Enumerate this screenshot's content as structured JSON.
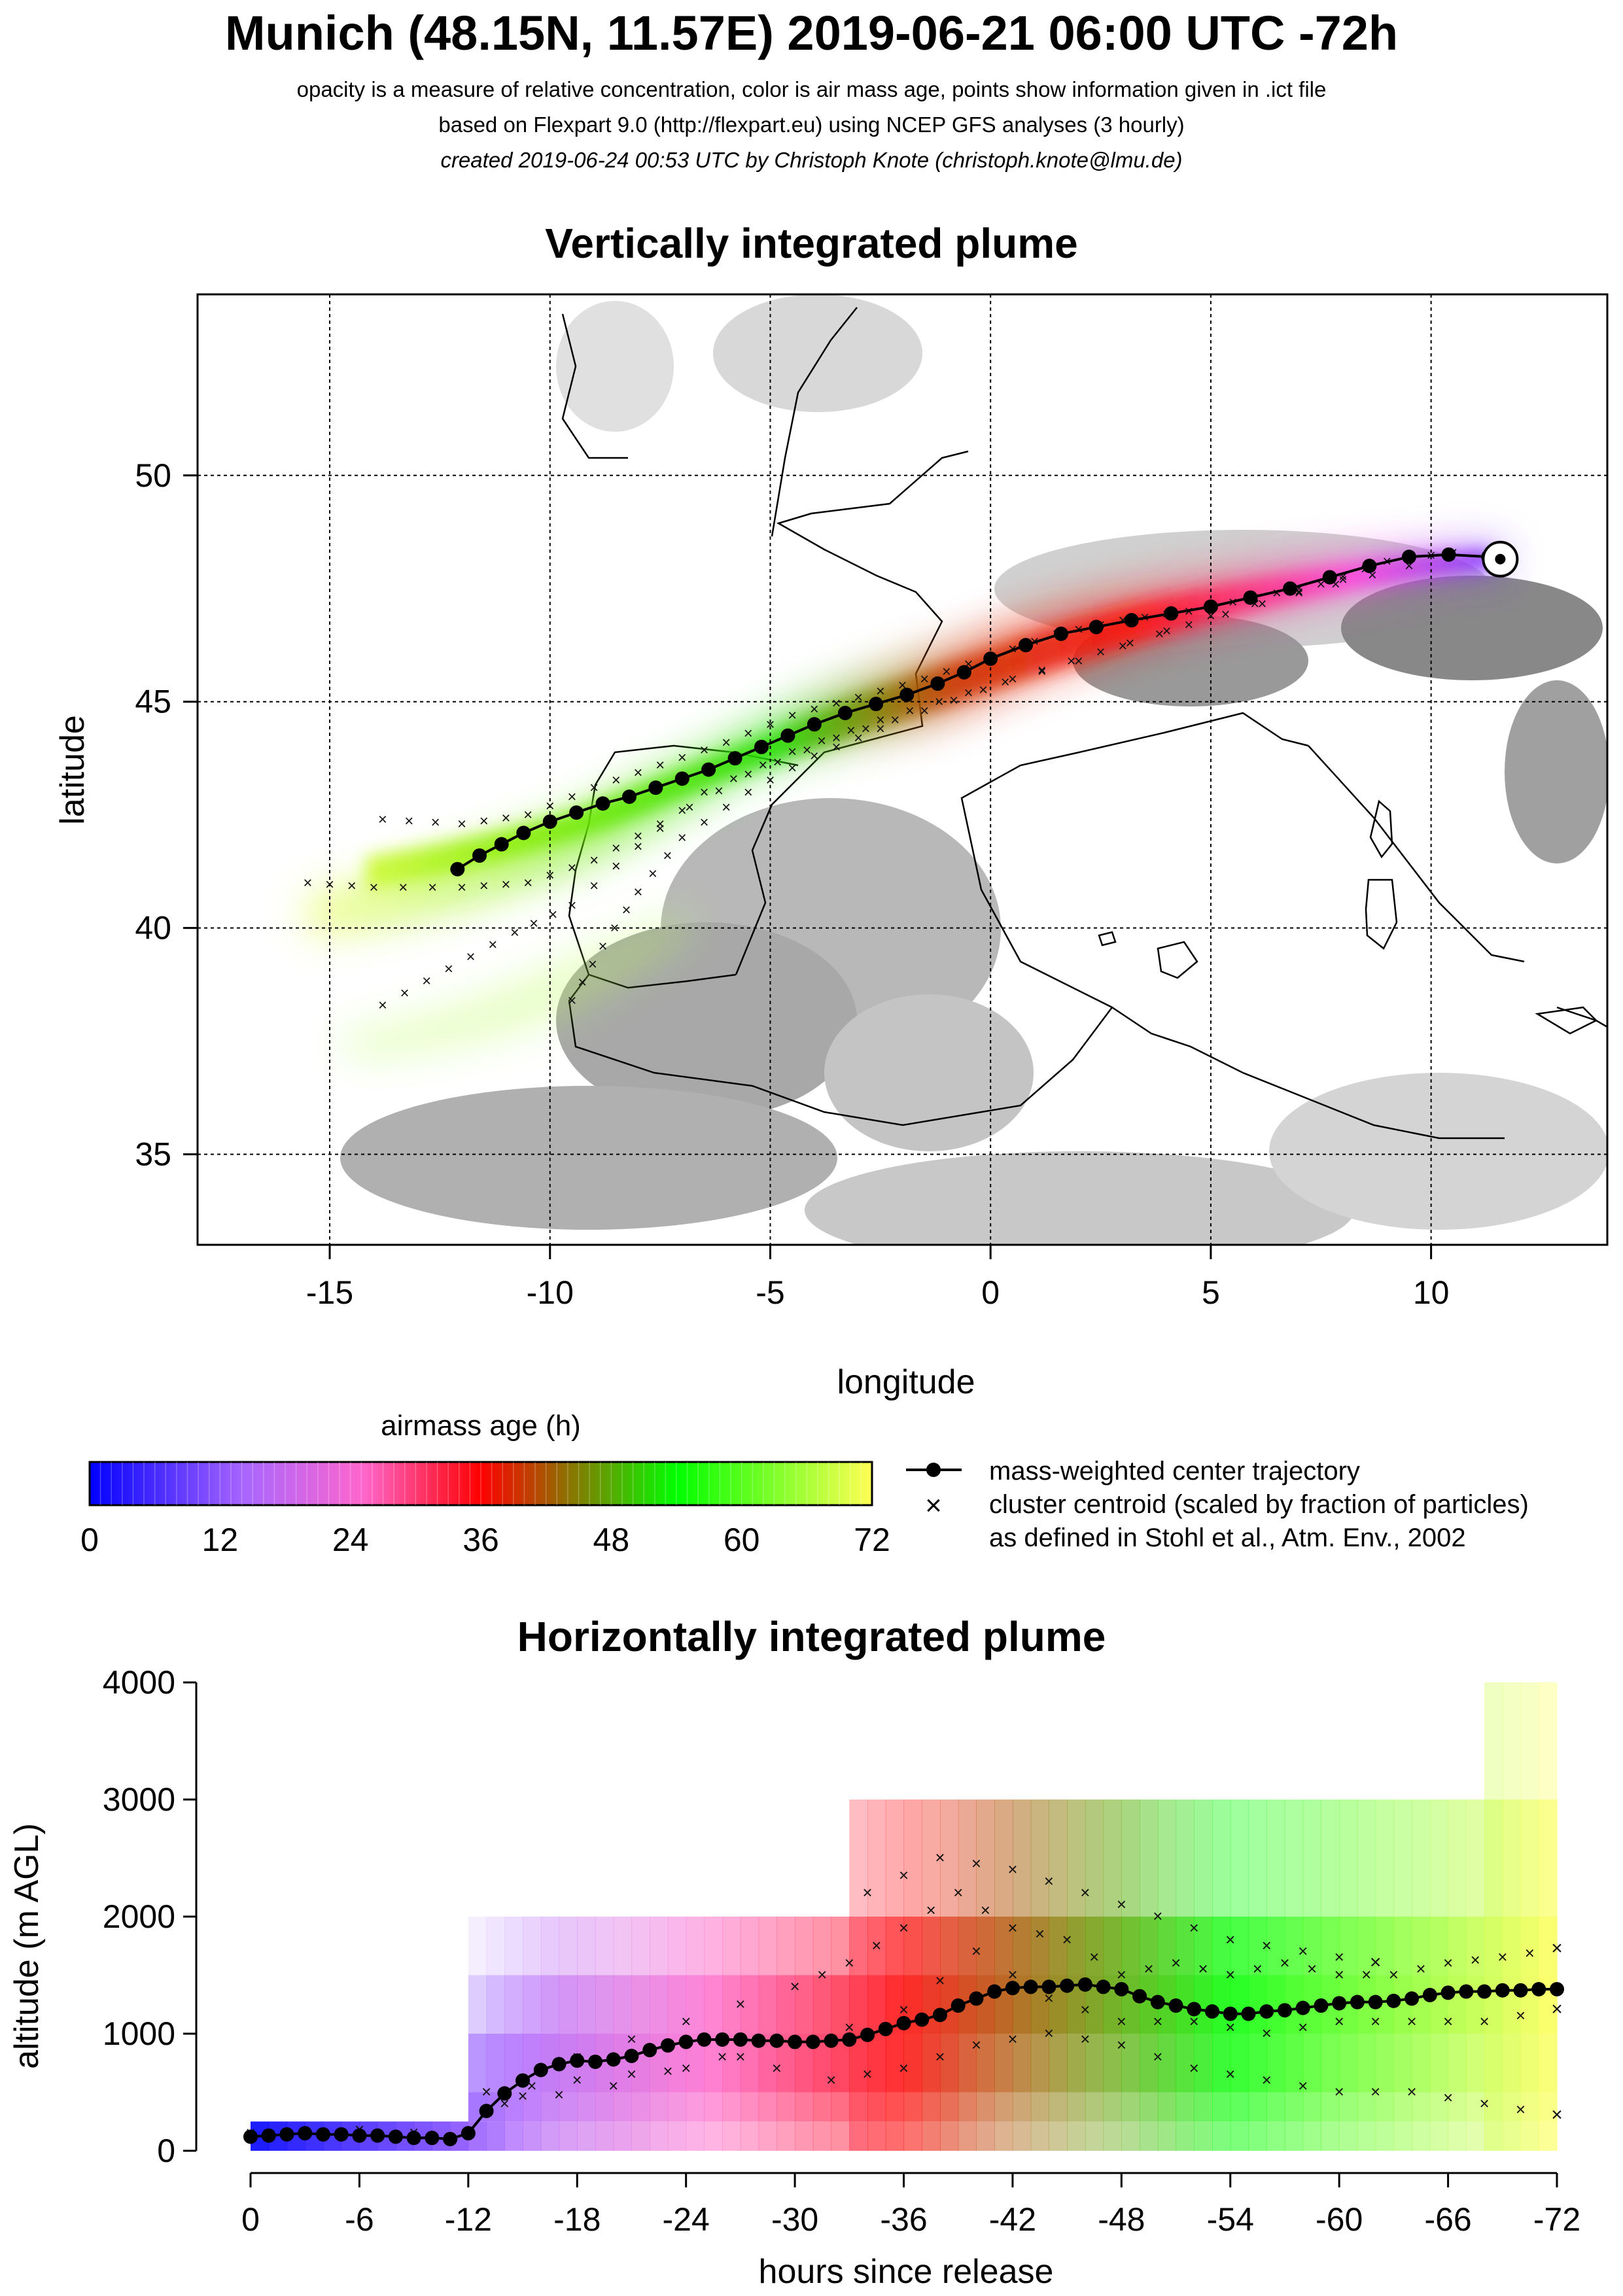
{
  "header": {
    "title": "Munich (48.15N, 11.57E) 2019-06-21 06:00 UTC -72h",
    "subtitle1": "opacity is a measure of relative concentration, color is air mass age, points show information given in .ict file",
    "subtitle2": "based on Flexpart 9.0 (http://flexpart.eu) using NCEP GFS analyses (3 hourly)",
    "subtitle3": "created 2019-06-24 00:53 UTC by Christoph Knote (christoph.knote@lmu.de)"
  },
  "colorbar": {
    "title": "airmass age (h)",
    "ticks": [
      "0",
      "12",
      "24",
      "36",
      "48",
      "60",
      "72"
    ],
    "stops": [
      "#0000ff",
      "#aa66ff",
      "#ff66cc",
      "#ff0000",
      "#00ff00",
      "#ffff55"
    ]
  },
  "legend": {
    "line1": "mass-weighted center trajectory",
    "line2": "cluster centroid (scaled by fraction of particles)",
    "line3": "as defined in Stohl et al., Atm. Env., 2002"
  },
  "chart_data": [
    {
      "type": "scatter",
      "title": "Vertically integrated plume",
      "xlabel": "longitude",
      "ylabel": "latitude",
      "xlim": [
        -18,
        14
      ],
      "ylim": [
        33,
        54
      ],
      "xticks": [
        "-15",
        "-10",
        "-5",
        "0",
        "5",
        "10"
      ],
      "yticks": [
        "35",
        "40",
        "45",
        "50"
      ],
      "grid": true,
      "release_point": {
        "lon": 11.57,
        "lat": 48.15
      },
      "center_trajectory": [
        [
          11.3,
          48.2
        ],
        [
          10.4,
          48.25
        ],
        [
          9.5,
          48.2
        ],
        [
          8.6,
          48.0
        ],
        [
          7.7,
          47.75
        ],
        [
          6.8,
          47.5
        ],
        [
          5.9,
          47.3
        ],
        [
          5.0,
          47.1
        ],
        [
          4.1,
          46.95
        ],
        [
          3.2,
          46.8
        ],
        [
          2.4,
          46.65
        ],
        [
          1.6,
          46.5
        ],
        [
          0.8,
          46.25
        ],
        [
          0.0,
          45.95
        ],
        [
          -0.6,
          45.65
        ],
        [
          -1.2,
          45.4
        ],
        [
          -1.9,
          45.15
        ],
        [
          -2.6,
          44.95
        ],
        [
          -3.3,
          44.75
        ],
        [
          -4.0,
          44.5
        ],
        [
          -4.6,
          44.25
        ],
        [
          -5.2,
          44.0
        ],
        [
          -5.8,
          43.75
        ],
        [
          -6.4,
          43.5
        ],
        [
          -7.0,
          43.3
        ],
        [
          -7.6,
          43.1
        ],
        [
          -8.2,
          42.9
        ],
        [
          -8.8,
          42.75
        ],
        [
          -9.4,
          42.55
        ],
        [
          -10.0,
          42.35
        ],
        [
          -10.6,
          42.1
        ],
        [
          -11.1,
          41.85
        ],
        [
          -11.6,
          41.6
        ],
        [
          -12.1,
          41.3
        ]
      ],
      "cluster_tracks": [
        [
          [
            10.5,
            48.3
          ],
          [
            9.0,
            48.1
          ],
          [
            7.5,
            47.6
          ],
          [
            6.0,
            47.3
          ],
          [
            4.5,
            47.0
          ],
          [
            3.0,
            46.8
          ],
          [
            1.5,
            46.5
          ],
          [
            0.0,
            46.0
          ],
          [
            -1.5,
            45.5
          ],
          [
            -3.0,
            45.1
          ],
          [
            -4.5,
            44.7
          ],
          [
            -6.0,
            44.1
          ],
          [
            -7.5,
            43.6
          ],
          [
            -9.0,
            43.1
          ],
          [
            -10.5,
            42.5
          ],
          [
            -12.0,
            42.3
          ],
          [
            -13.8,
            42.4
          ]
        ],
        [
          [
            9.5,
            48.0
          ],
          [
            7.0,
            47.4
          ],
          [
            4.5,
            46.7
          ],
          [
            2.5,
            46.1
          ],
          [
            0.5,
            45.5
          ],
          [
            -1.5,
            44.8
          ],
          [
            -3.5,
            44.2
          ],
          [
            -5.5,
            43.4
          ],
          [
            -7.5,
            42.3
          ],
          [
            -9.0,
            41.5
          ],
          [
            -10.5,
            41.0
          ],
          [
            -12.0,
            40.9
          ],
          [
            -14.0,
            40.9
          ],
          [
            -15.5,
            41.0
          ]
        ],
        [
          [
            8.0,
            47.7
          ],
          [
            5.0,
            46.9
          ],
          [
            2.0,
            45.9
          ],
          [
            -0.5,
            45.2
          ],
          [
            -2.5,
            44.6
          ],
          [
            -4.5,
            43.9
          ],
          [
            -6.5,
            43.0
          ],
          [
            -8.0,
            41.8
          ],
          [
            -9.5,
            40.5
          ],
          [
            -10.8,
            39.9
          ],
          [
            -12.3,
            39.1
          ],
          [
            -13.8,
            38.3
          ]
        ],
        [
          [
            -2.5,
            44.4
          ],
          [
            -4.0,
            43.8
          ],
          [
            -5.5,
            43.0
          ],
          [
            -7.0,
            42.0
          ],
          [
            -8.0,
            40.8
          ],
          [
            -8.8,
            39.6
          ],
          [
            -9.5,
            38.4
          ]
        ]
      ]
    },
    {
      "type": "scatter",
      "title": "Horizontally integrated plume",
      "xlabel": "hours since release",
      "ylabel": "altitude (m AGL)",
      "xlim": [
        0,
        -72
      ],
      "ylim": [
        0,
        4000
      ],
      "xticks": [
        "0",
        "-6",
        "-12",
        "-18",
        "-24",
        "-30",
        "-36",
        "-42",
        "-48",
        "-54",
        "-60",
        "-66",
        "-72"
      ],
      "yticks": [
        "0",
        "1000",
        "2000",
        "3000",
        "4000"
      ],
      "center_altitude": {
        "hours": [
          0,
          -1,
          -2,
          -3,
          -4,
          -5,
          -6,
          -7,
          -8,
          -9,
          -10,
          -11,
          -12,
          -13,
          -14,
          -15,
          -16,
          -17,
          -18,
          -19,
          -20,
          -21,
          -22,
          -23,
          -24,
          -25,
          -26,
          -27,
          -28,
          -29,
          -30,
          -31,
          -32,
          -33,
          -34,
          -35,
          -36,
          -37,
          -38,
          -39,
          -40,
          -41,
          -42,
          -43,
          -44,
          -45,
          -46,
          -47,
          -48,
          -49,
          -50,
          -51,
          -52,
          -53,
          -54,
          -55,
          -56,
          -57,
          -58,
          -59,
          -60,
          -61,
          -62,
          -63,
          -64,
          -65,
          -66,
          -67,
          -68,
          -69,
          -70,
          -71,
          -72
        ],
        "values": [
          120,
          130,
          140,
          150,
          140,
          140,
          130,
          130,
          120,
          110,
          110,
          100,
          150,
          340,
          490,
          600,
          690,
          740,
          770,
          760,
          780,
          810,
          860,
          900,
          930,
          950,
          950,
          950,
          940,
          940,
          930,
          930,
          940,
          950,
          990,
          1040,
          1090,
          1120,
          1160,
          1240,
          1300,
          1360,
          1390,
          1400,
          1400,
          1410,
          1420,
          1400,
          1380,
          1320,
          1270,
          1240,
          1210,
          1190,
          1170,
          1170,
          1190,
          1200,
          1220,
          1240,
          1260,
          1270,
          1270,
          1280,
          1300,
          1330,
          1350,
          1360,
          1360,
          1370,
          1370,
          1380,
          1380
        ]
      },
      "cluster_altitudes": [
        {
          "hours": [
            0,
            -6,
            -12,
            -18,
            -24,
            -30,
            -33,
            -36,
            -39,
            -42,
            -45,
            -48,
            -51,
            -54,
            -57,
            -60,
            -63,
            -66,
            -69,
            -72
          ],
          "values": [
            150,
            180,
            130,
            800,
            1100,
            1400,
            1600,
            1900,
            2200,
            1900,
            1800,
            1500,
            1600,
            1500,
            1600,
            1500,
            1500,
            1600,
            1650,
            1720
          ]
        },
        {
          "hours": [
            -13,
            -18,
            -24,
            -30,
            -36,
            -40,
            -44,
            -48,
            -52,
            -56,
            -60,
            -64,
            -68,
            -72
          ],
          "values": [
            500,
            600,
            700,
            900,
            1200,
            1700,
            1300,
            1100,
            1100,
            1000,
            1100,
            1100,
            1100,
            1200
          ]
        },
        {
          "hours": [
            -14,
            -20,
            -26,
            -32,
            -36,
            -40,
            -44,
            -48,
            -52,
            -56,
            -60,
            -64,
            -68,
            -72
          ],
          "values": [
            400,
            550,
            800,
            600,
            700,
            900,
            1000,
            900,
            700,
            600,
            500,
            500,
            400,
            300
          ]
        },
        {
          "hours": [
            -34,
            -38,
            -42,
            -46,
            -50,
            -54,
            -58,
            -62
          ],
          "values": [
            2200,
            2500,
            2400,
            2200,
            2000,
            1800,
            1700,
            1600
          ]
        }
      ]
    }
  ]
}
